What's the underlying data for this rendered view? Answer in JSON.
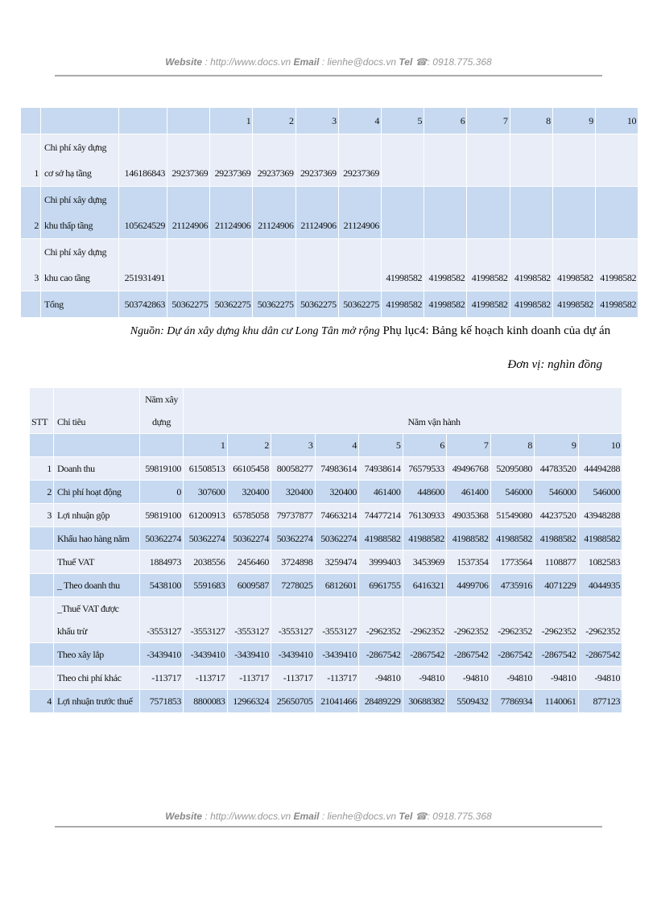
{
  "header": {
    "website_label": "Website",
    "website": ": http://www.docs.vn",
    "email_label": "Email",
    "email": ": lienhe@docs.vn",
    "tel_label": "Tel",
    "tel": "☎: 0918.775.368"
  },
  "table1": {
    "header": [
      null,
      null,
      null,
      null,
      1,
      2,
      3,
      4,
      5,
      6,
      7,
      8,
      9,
      10
    ],
    "rows": [
      [
        1,
        "Chi phí xây dựng cơ sở hạ tầng",
        146186843,
        29237369,
        29237369,
        29237369,
        29237369,
        29237369,
        null,
        null,
        null,
        null,
        null,
        null
      ],
      [
        2,
        "Chi phí xây dựng khu thấp tầng",
        105624529,
        21124906,
        21124906,
        21124906,
        21124906,
        21124906,
        null,
        null,
        null,
        null,
        null,
        null
      ],
      [
        3,
        "Chi phí xây dựng khu cao tầng",
        251931491,
        null,
        null,
        null,
        null,
        null,
        41998582,
        41998582,
        41998582,
        41998582,
        41998582,
        41998582
      ],
      [
        null,
        "Tổng",
        503742863,
        50362275,
        50362275,
        50362275,
        50362275,
        50362275,
        41998582,
        41998582,
        41998582,
        41998582,
        41998582,
        41998582
      ]
    ]
  },
  "caption": {
    "source": "Nguồn: Dự án xây dựng khu dân cư Long Tân mở rộng",
    "title": "Phụ lục4: Bảng kế hoạch kinh doanh của dự án"
  },
  "unit": "Đơn vị: nghìn đồng",
  "table2": {
    "header": [
      "STT",
      "Chỉ tiêu",
      "Năm xây dựng",
      "Năm vận hành"
    ],
    "subheader": [
      null,
      null,
      null,
      1,
      2,
      3,
      4,
      5,
      6,
      7,
      8,
      9,
      10
    ],
    "rows": [
      [
        1,
        "Doanh thu",
        59819100,
        61508513,
        66105458,
        80058277,
        74983614,
        74938614,
        76579533,
        49496768,
        52095080,
        44783520,
        44494288
      ],
      [
        2,
        "Chi phí hoạt động",
        0,
        307600,
        320400,
        320400,
        320400,
        461400,
        448600,
        461400,
        546000,
        546000,
        546000
      ],
      [
        3,
        "Lợi nhuận gộp",
        59819100,
        61200913,
        65785058,
        79737877,
        74663214,
        74477214,
        76130933,
        49035368,
        51549080,
        44237520,
        43948288
      ],
      [
        null,
        "Khấu hao hàng năm",
        50362274,
        50362274,
        50362274,
        50362274,
        50362274,
        41988582,
        41988582,
        41988582,
        41988582,
        41988582,
        41988582
      ],
      [
        null,
        "Thuế VAT",
        1884973,
        2038556,
        2456460,
        3724898,
        3259474,
        3999403,
        3453969,
        1537354,
        1773564,
        1108877,
        1082583
      ],
      [
        null,
        "_ Theo doanh thu",
        5438100,
        5591683,
        6009587,
        7278025,
        6812601,
        6961755,
        6416321,
        4499706,
        4735916,
        4071229,
        4044935
      ],
      [
        null,
        "_Thuế VAT được khấu trừ",
        -3553127,
        -3553127,
        -3553127,
        -3553127,
        -3553127,
        -2962352,
        -2962352,
        -2962352,
        -2962352,
        -2962352,
        -2962352
      ],
      [
        null,
        "Theo xây lắp",
        -3439410,
        -3439410,
        -3439410,
        -3439410,
        -3439410,
        -2867542,
        -2867542,
        -2867542,
        -2867542,
        -2867542,
        -2867542
      ],
      [
        null,
        "Theo chi phí khác",
        -113717,
        -113717,
        -113717,
        -113717,
        -113717,
        -94810,
        -94810,
        -94810,
        -94810,
        -94810,
        -94810
      ],
      [
        4,
        "Lợi nhuận trước thuế",
        7571853,
        8800083,
        12966324,
        25650705,
        21041466,
        28489229,
        30688382,
        5509432,
        7786934,
        1140061,
        877123
      ]
    ]
  },
  "footer": {
    "website_label": "Website",
    "website": ": http://www.docs.vn",
    "email_label": "Email",
    "email": ": lienhe@docs.vn",
    "tel_label": "Tel",
    "tel": "☎: 0918.775.368"
  }
}
